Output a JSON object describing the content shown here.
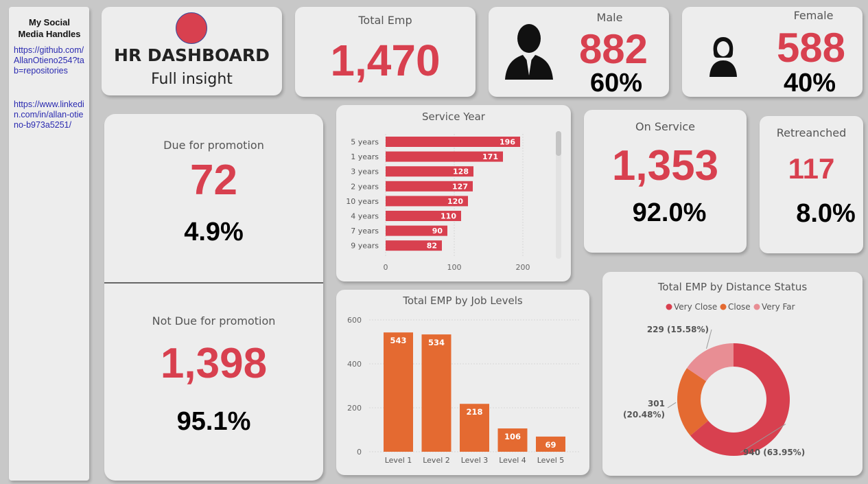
{
  "social": {
    "title": "My Social Media Handles",
    "github": "https://github.com/AllanOtieno254?tab=repositories",
    "linkedin": "https://www.linkedin.com/in/allan-otieno-b973a5251/"
  },
  "header": {
    "title": "HR DASHBOARD",
    "subtitle": "Full insight",
    "logo_color": "#d8404f"
  },
  "total_emp": {
    "label": "Total Emp",
    "value": "1,470"
  },
  "male": {
    "label": "Male",
    "value": "882",
    "pct": "60%"
  },
  "female": {
    "label": "Female",
    "value": "588",
    "pct": "40%"
  },
  "promotion": {
    "due_label": "Due for promotion",
    "due_value": "72",
    "due_pct": "4.9%",
    "not_due_label": "Not Due for promotion",
    "not_due_value": "1,398",
    "not_due_pct": "95.1%"
  },
  "on_service": {
    "label": "On Service",
    "value": "1,353",
    "pct": "92.0%"
  },
  "retrenched": {
    "label": "Retreanched",
    "value": "117",
    "pct": "8.0%"
  },
  "colors": {
    "accent": "#d8404f",
    "orange": "#e46a31",
    "pink": "#e88e94",
    "bg": "#ededed"
  },
  "chart_data": [
    {
      "type": "bar",
      "orientation": "horizontal",
      "title": "Service Year",
      "categories": [
        "5 years",
        "1 years",
        "3 years",
        "2 years",
        "10 years",
        "4 years",
        "7 years",
        "9 years"
      ],
      "values": [
        196,
        171,
        128,
        127,
        120,
        110,
        90,
        82
      ],
      "xticks": [
        0,
        100,
        200
      ],
      "xlim": [
        0,
        230
      ],
      "color": "#d8404f"
    },
    {
      "type": "bar",
      "title": "Total EMP by Job Levels",
      "categories": [
        "Level 1",
        "Level 2",
        "Level 3",
        "Level 4",
        "Level 5"
      ],
      "values": [
        543,
        534,
        218,
        106,
        69
      ],
      "yticks": [
        0,
        200,
        400,
        600
      ],
      "ylim": [
        0,
        600
      ],
      "color": "#e46a31"
    },
    {
      "type": "pie",
      "donut": true,
      "title": "Total EMP by Distance Status",
      "legend": [
        "Very Close",
        "Close",
        "Very Far"
      ],
      "legend_position": "top",
      "slices": [
        {
          "name": "Very Close",
          "value": 940,
          "label": "940 (63.95%)",
          "color": "#d8404f"
        },
        {
          "name": "Close",
          "value": 301,
          "label": "301 (20.48%)",
          "color": "#e46a31"
        },
        {
          "name": "Very Far",
          "value": 229,
          "label": "229 (15.58%)",
          "color": "#e88e94"
        }
      ]
    }
  ]
}
